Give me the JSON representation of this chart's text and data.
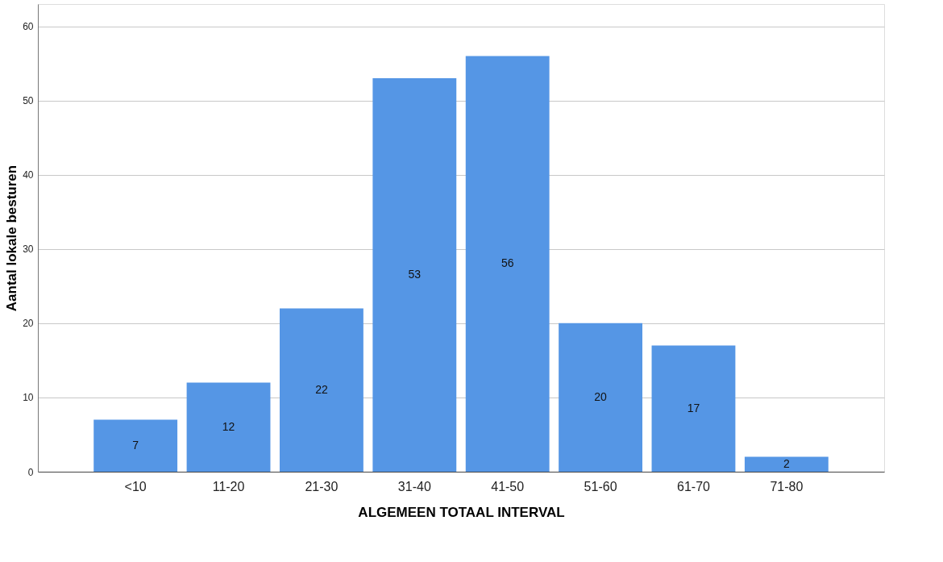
{
  "chart_data": {
    "type": "bar",
    "xlabel": "ALGEMEEN  TOTAAL  INTERVAL",
    "ylabel": "Aantal lokale besturen",
    "categories": [
      "<10",
      "11-20",
      "21-30",
      "31-40",
      "41-50",
      "51-60",
      "61-70",
      "71-80"
    ],
    "values": [
      7,
      12,
      22,
      53,
      56,
      20,
      17,
      2
    ],
    "color": "#5596e5",
    "ylim": [
      0,
      63
    ],
    "yticks": [
      0,
      10,
      20,
      30,
      40,
      50,
      60
    ],
    "grid": "y",
    "data_labels": true
  }
}
